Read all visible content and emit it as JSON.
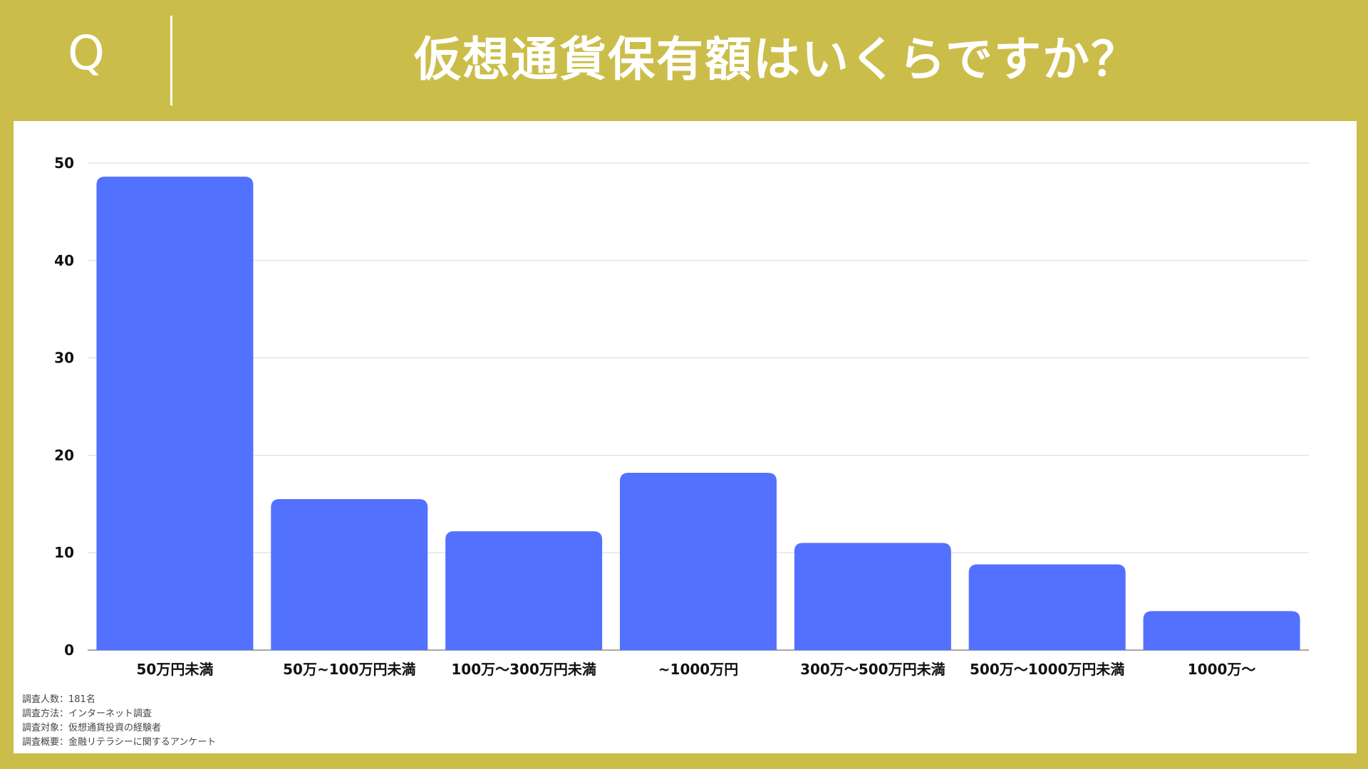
{
  "header": {
    "q_label": "Q",
    "title": "仮想通貨保有額はいくらですか？"
  },
  "colors": {
    "background": "#cbbd4a",
    "panel": "#ffffff",
    "bar": "#5271ff",
    "grid": "#d9d9d9"
  },
  "chart_data": {
    "type": "bar",
    "categories": [
      "50万円未満",
      "50万~100万円未満",
      "100万～300万円未満",
      "~1000万円",
      "300万～500万円未満",
      "500万～1000万円未満",
      "1000万～"
    ],
    "values": [
      48.6,
      15.5,
      12.2,
      18.2,
      11.0,
      8.8,
      4.0
    ],
    "ylim": [
      0,
      50
    ],
    "yticks": [
      "0",
      "10",
      "20",
      "30",
      "40",
      "50"
    ],
    "grid": true,
    "title": "",
    "xlabel": "",
    "ylabel": ""
  },
  "notes": [
    "調査人数：181名",
    "調査方法：インターネット調査",
    "調査対象：仮想通貨投資の経験者",
    "調査概要：金融リテラシーに関するアンケート"
  ]
}
